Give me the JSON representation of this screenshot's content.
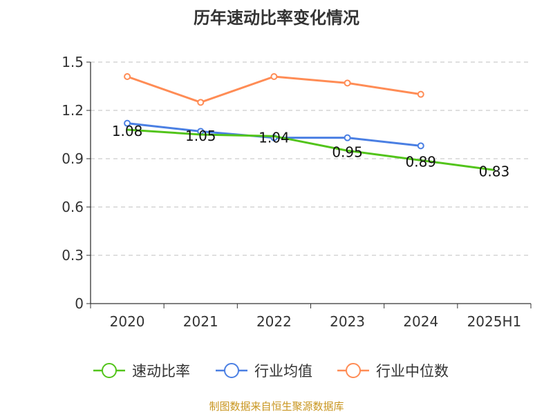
{
  "chart_data": {
    "type": "line",
    "title": "历年速动比率变化情况",
    "categories": [
      "2020",
      "2021",
      "2022",
      "2023",
      "2024",
      "2025H1"
    ],
    "ylim": [
      0,
      1.5
    ],
    "yticks": [
      0,
      0.3,
      0.6,
      0.9,
      1.2,
      1.5
    ],
    "ytick_labels": [
      "0",
      "0.3",
      "0.6",
      "0.9",
      "1.2",
      "1.5"
    ],
    "grid": true,
    "legend_position": "bottom",
    "series": [
      {
        "name": "速动比率",
        "color": "#52c41a",
        "values": [
          1.08,
          1.05,
          1.04,
          0.95,
          0.89,
          0.83
        ],
        "labels": [
          "1.08",
          "1.05",
          "1.04",
          "0.95",
          "0.89",
          "0.83"
        ]
      },
      {
        "name": "行业均值",
        "color": "#4a7fe3",
        "values": [
          1.12,
          1.07,
          1.03,
          1.03,
          0.98,
          null
        ]
      },
      {
        "name": "行业中位数",
        "color": "#ff8c55",
        "values": [
          1.41,
          1.25,
          1.41,
          1.37,
          1.3,
          null
        ]
      }
    ]
  },
  "source": "制图数据来自恒生聚源数据库"
}
